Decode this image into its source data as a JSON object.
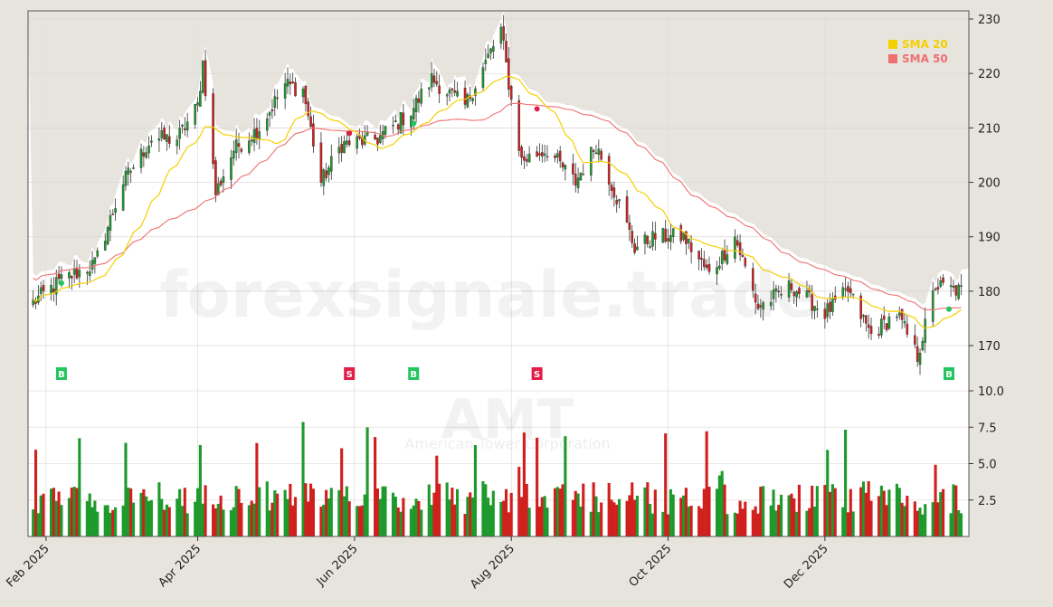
{
  "chart_data": {
    "type": "candlestick",
    "watermark": {
      "site": "forexsignale.trade",
      "ticker": "AMT",
      "company": "American Tower Corporation"
    },
    "price_axis": {
      "min": 162.7,
      "max": 231.5,
      "ticks": [
        170,
        180,
        190,
        200,
        210,
        220,
        230
      ]
    },
    "volume_axis": {
      "min": 0,
      "max": 10.0,
      "ticks": [
        "2.5",
        "5.0",
        "7.5",
        "10.0"
      ]
    },
    "x_axis": {
      "date_range": [
        "2025-01-27",
        "2026-01-23"
      ],
      "ticks": [
        {
          "date": "2025-02-01",
          "label": "Feb 2025"
        },
        {
          "date": "2025-04-01",
          "label": "Apr 2025"
        },
        {
          "date": "2025-06-01",
          "label": "Jun 2025"
        },
        {
          "date": "2025-08-01",
          "label": "Aug 2025"
        },
        {
          "date": "2025-10-01",
          "label": "Oct 2025"
        },
        {
          "date": "2025-12-01",
          "label": "Dec 2025"
        }
      ]
    },
    "legend": {
      "placement": "top-right",
      "items": [
        {
          "label": "SMA 20",
          "color": "#f5d000"
        },
        {
          "label": "SMA 50",
          "color": "#f07070"
        }
      ]
    },
    "colors": {
      "up": "#1e9a2c",
      "down": "#d0201e",
      "sma20": "#f5d000",
      "sma50": "#f07070"
    },
    "price_anchors": [
      [
        "2025-01-27",
        178
      ],
      [
        "2025-02-07",
        182
      ],
      [
        "2025-02-20",
        185
      ],
      [
        "2025-03-03",
        200
      ],
      [
        "2025-03-14",
        208
      ],
      [
        "2025-03-24",
        208
      ],
      [
        "2025-04-01",
        214
      ],
      [
        "2025-04-03",
        222
      ],
      [
        "2025-04-08",
        198
      ],
      [
        "2025-04-15",
        206
      ],
      [
        "2025-04-25",
        210
      ],
      [
        "2025-05-05",
        218
      ],
      [
        "2025-05-12",
        217
      ],
      [
        "2025-05-19",
        200
      ],
      [
        "2025-05-27",
        207
      ],
      [
        "2025-06-10",
        208
      ],
      [
        "2025-06-23",
        213
      ],
      [
        "2025-07-01",
        219
      ],
      [
        "2025-07-14",
        214
      ],
      [
        "2025-07-28",
        228
      ],
      [
        "2025-08-01",
        215
      ],
      [
        "2025-08-05",
        204
      ],
      [
        "2025-08-15",
        206
      ],
      [
        "2025-08-26",
        200
      ],
      [
        "2025-09-03",
        207
      ],
      [
        "2025-09-12",
        196
      ],
      [
        "2025-09-18",
        188
      ],
      [
        "2025-09-26",
        190
      ],
      [
        "2025-10-07",
        190
      ],
      [
        "2025-10-17",
        183
      ],
      [
        "2025-10-27",
        190
      ],
      [
        "2025-11-05",
        177
      ],
      [
        "2025-11-18",
        181
      ],
      [
        "2025-12-01",
        176
      ],
      [
        "2025-12-10",
        180
      ],
      [
        "2025-12-19",
        172
      ],
      [
        "2025-12-29",
        176
      ],
      [
        "2026-01-06",
        168
      ],
      [
        "2026-01-13",
        181
      ],
      [
        "2026-01-23",
        180
      ]
    ],
    "signals": [
      {
        "type": "B",
        "date": "2025-02-07",
        "price": 181.5
      },
      {
        "type": "S",
        "date": "2025-05-30",
        "price": 209
      },
      {
        "type": "B",
        "date": "2025-06-24",
        "price": 210.8
      },
      {
        "type": "S",
        "date": "2025-08-11",
        "price": 213.5
      },
      {
        "type": "B",
        "date": "2026-01-23",
        "price": 176.7
      }
    ]
  }
}
